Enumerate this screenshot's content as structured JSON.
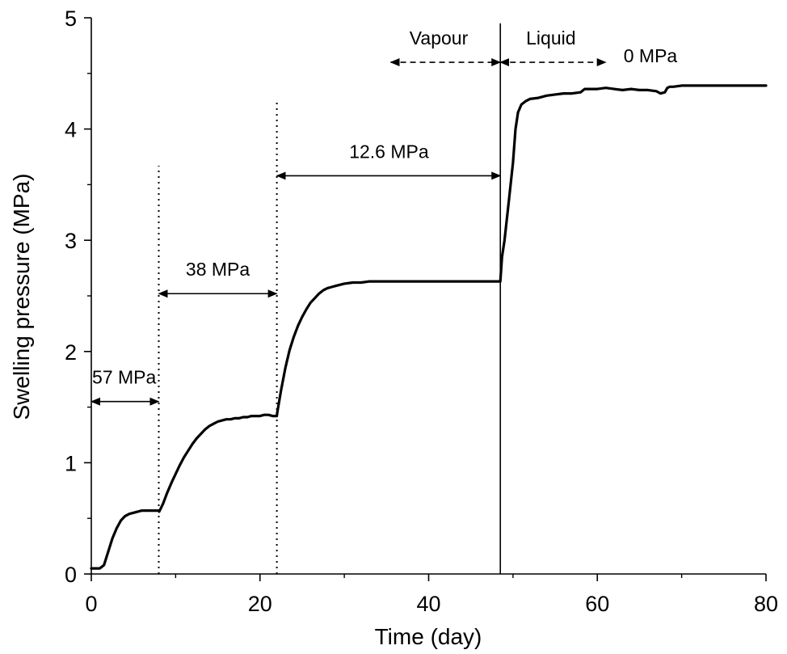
{
  "chart_data": {
    "type": "line",
    "xlabel": "Time (day)",
    "ylabel": "Swelling pressure (MPa)",
    "xlim": [
      0,
      80
    ],
    "ylim": [
      0,
      5
    ],
    "xticks": [
      0,
      20,
      40,
      60,
      80
    ],
    "yticks": [
      0,
      1,
      2,
      3,
      4,
      5
    ],
    "grid": false,
    "series": [
      {
        "x": [
          0,
          1.0,
          1.5,
          2,
          2.5,
          3,
          3.5,
          4,
          4.5,
          5,
          5.5,
          6,
          6.5,
          7,
          7.5,
          8.0,
          8.05,
          8.5,
          9,
          9.5,
          10,
          10.5,
          11,
          11.5,
          12,
          12.5,
          13,
          13.5,
          14,
          14.5,
          15,
          15.5,
          16,
          16.5,
          17,
          17.5,
          18,
          18.5,
          19,
          19.5,
          20,
          20.5,
          21,
          21.5,
          22.0,
          22.05,
          22.5,
          23,
          23.5,
          24,
          24.5,
          25,
          25.5,
          26,
          26.5,
          27,
          27.5,
          28,
          28.5,
          29,
          30,
          31,
          32,
          33,
          34,
          36,
          38,
          40,
          42,
          44,
          46,
          48.4,
          48.5,
          48.7,
          49,
          49.5,
          50,
          50.3,
          50.6,
          51,
          51.5,
          52,
          53,
          54,
          55,
          56,
          57,
          58,
          58.5,
          59,
          60,
          61,
          62,
          63,
          64,
          65,
          66,
          67,
          67.5,
          68,
          68.3,
          68.6,
          69,
          70,
          71,
          72,
          73,
          74,
          75,
          76,
          77,
          78,
          79,
          80
        ],
        "y": [
          0.05,
          0.05,
          0.08,
          0.2,
          0.32,
          0.41,
          0.48,
          0.52,
          0.54,
          0.55,
          0.56,
          0.57,
          0.57,
          0.57,
          0.57,
          0.57,
          0.56,
          0.63,
          0.73,
          0.82,
          0.9,
          0.98,
          1.05,
          1.11,
          1.17,
          1.22,
          1.26,
          1.3,
          1.33,
          1.35,
          1.37,
          1.38,
          1.39,
          1.39,
          1.4,
          1.4,
          1.41,
          1.41,
          1.42,
          1.42,
          1.42,
          1.43,
          1.43,
          1.42,
          1.42,
          1.45,
          1.65,
          1.85,
          2.01,
          2.13,
          2.23,
          2.31,
          2.38,
          2.44,
          2.48,
          2.52,
          2.55,
          2.57,
          2.58,
          2.59,
          2.61,
          2.62,
          2.62,
          2.63,
          2.63,
          2.63,
          2.63,
          2.63,
          2.63,
          2.63,
          2.63,
          2.63,
          2.63,
          2.85,
          3.0,
          3.35,
          3.7,
          4.0,
          4.15,
          4.22,
          4.25,
          4.27,
          4.28,
          4.3,
          4.31,
          4.32,
          4.32,
          4.33,
          4.36,
          4.36,
          4.36,
          4.37,
          4.36,
          4.35,
          4.36,
          4.35,
          4.35,
          4.34,
          4.32,
          4.33,
          4.37,
          4.38,
          4.38,
          4.39,
          4.39,
          4.39,
          4.39,
          4.39,
          4.39,
          4.39,
          4.39,
          4.39,
          4.39,
          4.39
        ]
      }
    ],
    "vlines": [
      {
        "x": 8,
        "ymax": 3.67,
        "style": "dotted"
      },
      {
        "x": 22,
        "ymax": 4.27,
        "style": "dotted"
      },
      {
        "x": 48.5,
        "ymax": 4.95,
        "style": "solid"
      }
    ],
    "arrows": [
      {
        "x1": 0,
        "x2": 8,
        "y": 1.55,
        "style": "solid"
      },
      {
        "x1": 8,
        "x2": 22,
        "y": 2.52,
        "style": "solid"
      },
      {
        "x1": 22,
        "x2": 48.5,
        "y": 3.58,
        "style": "solid"
      },
      {
        "x1": 35.5,
        "x2": 48.5,
        "y": 4.6,
        "style": "dashed"
      },
      {
        "x1": 48.5,
        "x2": 61,
        "y": 4.6,
        "style": "dashed"
      }
    ],
    "annotations": [
      {
        "text": "57 MPa",
        "x": 0.1,
        "y": 1.71,
        "anchor": "start"
      },
      {
        "text": "38 MPa",
        "x": 15,
        "y": 2.68,
        "anchor": "middle"
      },
      {
        "text": "12.6 MPa",
        "x": 35.3,
        "y": 3.74,
        "anchor": "middle"
      },
      {
        "text": "Vapour",
        "x": 41.2,
        "y": 4.76,
        "anchor": "middle"
      },
      {
        "text": "Liquid",
        "x": 54.5,
        "y": 4.76,
        "anchor": "middle"
      },
      {
        "text": "0 MPa",
        "x": 66.3,
        "y": 4.6,
        "anchor": "middle"
      }
    ]
  }
}
